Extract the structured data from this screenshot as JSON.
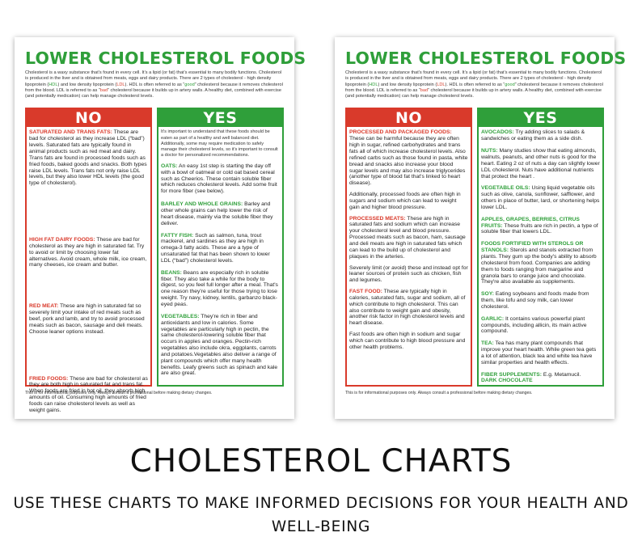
{
  "left": {
    "title": "LOWER CHOLESTEROL FOODS",
    "intro": {
      "a": "Cholesterol is a waxy substance that’s found in every cell. It’s a lipid (or fat) that’s essential to many bodily functions. Cholesterol is produced in the liver and is obtained from meats, eggs and dairy products. There are 2 types of cholesterol - high density lipoprotein (",
      "hdl": "HDL",
      "b": ") and low density lipoprotein (",
      "ldl": "LDL",
      "c": "). HDL is often referred to as “",
      "good": "good",
      "d": "” cholesterol because it removes cholesterol from the blood. LDL is referred to as “",
      "bad": "bad",
      "e": "” cholesterol because it builds up in artery walls. A healthy diet, combined with exercise (and potentially medication) can help manage cholesterol levels."
    },
    "no_label": "NO",
    "yes_label": "YES",
    "no_items": [
      {
        "h": "SATURATED AND TRANS FATS:",
        "t": " These are bad for cholesterol as they increase LDL (“bad”) levels. Saturated fats are typically found in animal products such as red meat and dairy. Trans fats are found in processed foods such as fried foods, baked goods and snacks. Both types raise LDL levels. Trans fats not only raise LDL levels, but they also lower HDL levels (the good type of cholesterol)."
      },
      {
        "h": "HIGH FAT DAIRY FOODS:",
        "t": " These are bad for cholesterol as they are high in saturated fat.  Try to avoid or limit by choosing lower fat alternatives.  Avoid cream, whole milk, ice cream, many cheeses, ice cream and butter."
      },
      {
        "h": "RED MEAT:",
        "t": " These are high in saturated fat so severely limit your intake of red meats such as beef, pork and lamb, and try to avoid processed meats such as bacon, sausage and deli meats.  Choose leaner options instead."
      },
      {
        "h": "FRIED FOODS:",
        "t": " These are bad for cholesterol as they are both high in saturated fat and trans fat.  When foods are fried in hot oil, they absorb high amounts of oil. Consuming high amounts of fried foods can raise cholesterol levels as well as weight gains."
      }
    ],
    "yes_intro": "It's important to understand that these foods should be eaten as part of a healthy and well balanced diet. Additionally, some may require medication to safely manage their cholesterol levels, so it's important to consult a doctor for personalized recommendations.",
    "yes_items": [
      {
        "h": "OATS:",
        "t": " An easy 1st step is starting the day off with a bowl of oatmeal or cold oat based cereal such as Cheerios.  These contain soluble fiber which reduces cholesterol levels. Add some fruit for more fiber (see below)."
      },
      {
        "h": "BARLEY AND WHOLE GRAINS:",
        "t": " Barley and other whole grains can help lower the risk of heart disease, mainly via the soluble fiber they deliver."
      },
      {
        "h": "FATTY FISH:",
        "t": " Such as salmon, tuna, trout mackerel, and sardines as they are high in omega-3 fatty acids.  These are a type of unsaturated fat that has been shown to lower LDL (“bad”) cholesterol levels."
      },
      {
        "h": "BEANS:",
        "t": " Beans are especially rich in soluble fiber. They also take a while for the body to digest, so you feel full longer after a meal. That's one reason they're useful for those trying to lose weight.  Try navy, kidney, lentils, garbanzo black-eyed peas."
      },
      {
        "h": "VEGETABLES:",
        "t": " They're rich in fiber and antioxidants and low in calories. Some vegetables are particularly high in pectin, the same cholesterol-lowering soluble fiber that occurs in apples and oranges. Pectin-rich vegetables also include okra, eggplants, carrots and potatoes.Vegetables also deliver a range of plant compounds which offer many health benefits. Leafy greens such as spinach and kale are also great."
      }
    ],
    "footer": "This is for informational purposes only. Always consult a professional before making dietary changes."
  },
  "right": {
    "title": "LOWER CHOLESTEROL FOODS",
    "no_label": "NO",
    "yes_label": "YES",
    "no_items": [
      {
        "h": "PROCESSED AND PACKAGED FOODS:",
        "t": " These can be harmful because they are often high in sugar, refined carbohydrates and trans fats all of which increase cholesterol levels. Also refined carbs such as those found in pasta, white bread and snacks also increase your blood sugar levels and may also increase triglycerides (another type of blood fat that's linked to heart disease)."
      },
      {
        "h": "",
        "t": "Additionally, processed foods are often high in sugars and sodium which can lead to weight gain and higher blood pressure."
      },
      {
        "h": "PROCESSED MEATS:",
        "t": " These are high in saturated fats and sodium which can increase your cholesterol level and blood pressure. Processed meats such as bacon, ham, sausage and deli meats are high in saturated fats which can lead to the build up of cholesterol and plaques in the arteries."
      },
      {
        "h": "",
        "t": "Severely limit (or avoid) these and instead opt for leaner sources of protein  such as chicken, fish and legumes."
      },
      {
        "h": "FAST FOOD:",
        "t": " These are typically high in calories, saturated fats, sugar and sodium, all of which contribute to high cholesterol. This can also contribute to weight gain and obesity, another risk factor in high cholesterol levels and heart disease."
      },
      {
        "h": "",
        "t": "Fast foods are often high in sodium and sugar which can contribute to high blood pressure and other health problems."
      }
    ],
    "yes_items": [
      {
        "h": "AVOCADOS:",
        "t": " Try adding slices to salads & sandwiches or eating them as a side dish."
      },
      {
        "h": "NUTS:",
        "t": " Many studies show that eating almonds, walnuts, peanuts, and other nuts is good for the heart. Eating 2 oz of nuts a day can slightly lower LDL cholesterol. Nuts have additional nutrients that protect the heart ."
      },
      {
        "h": "VEGETABLE OILS:",
        "t": " Using liquid vegetable oils such as olive, canola, sunflower, safflower, and others in place of butter, lard, or shortening helps lower LDL."
      },
      {
        "h": "APPLES, GRAPES, BERRIES, CITRUS FRUITS:",
        "t": " These fruits are rich in pectin, a type of soluble fiber that lowers LDL."
      },
      {
        "h": "FOODS FORTIFIED WITH STEROLS OR STANOLS:",
        "t": " Sterols and stanols extracted from plants.  They gum up the body's ability to absorb cholesterol from food. Companies are adding them to foods ranging from margarine and granola bars to orange juice and chocolate. They're also available as supplements."
      },
      {
        "h": "SOY:",
        "t": " Eating soybeans and foods made from them, like tofu and soy milk, can lower cholesterol."
      },
      {
        "h": "GARLIC:",
        "t": " It contains various powerful plant compounds, including allicin, its main active compound."
      },
      {
        "h": "TEA:",
        "t": " Tea has many plant compounds that improve your heart health. While green tea gets a lot of attention, black tea and white tea have similar properties and health effects."
      },
      {
        "h": "FIBER SUPPLEMENTS:",
        "t": " E.g. Metamucil."
      },
      {
        "h": "DARK CHOCOLATE",
        "t": ""
      }
    ],
    "footer": "This is for informational purposes only. Always consult a professional before making dietary changes."
  },
  "main_title": "CHOLESTEROL CHARTS",
  "subtitle": "USE THESE CHARTS TO MAKE INFORMED DECISIONS FOR YOUR HEALTH AND WELL-BEING"
}
